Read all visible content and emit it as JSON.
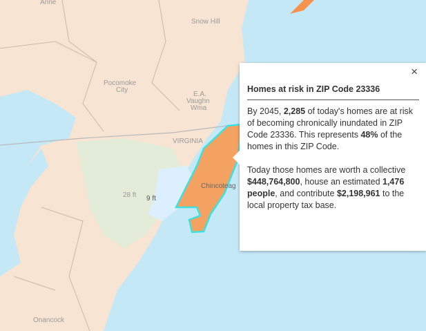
{
  "map": {
    "labels": [
      "Anne",
      "Snow Hill",
      "Pocomoke",
      "City",
      "E.A.",
      "Vaughn",
      "Wma",
      "VIRGINIA",
      "Chincoteag",
      "9 ft",
      "28 ft",
      "Onancock"
    ]
  },
  "popup": {
    "close": "×",
    "title": "Homes at risk in ZIP Code 23336",
    "paragraphs": [
      [
        "By 2045, ",
        "2,285",
        " of today's homes are at risk of becoming chronically inundated in ZIP Code 23336. This represents ",
        "48%",
        " of the homes in this ZIP Code."
      ],
      [
        "Today those homes are worth a collective ",
        "$448,764,800",
        ", house an estimated ",
        "1,476 people",
        ", and contribute ",
        "$2,198,961",
        " to the local property tax base."
      ]
    ]
  }
}
